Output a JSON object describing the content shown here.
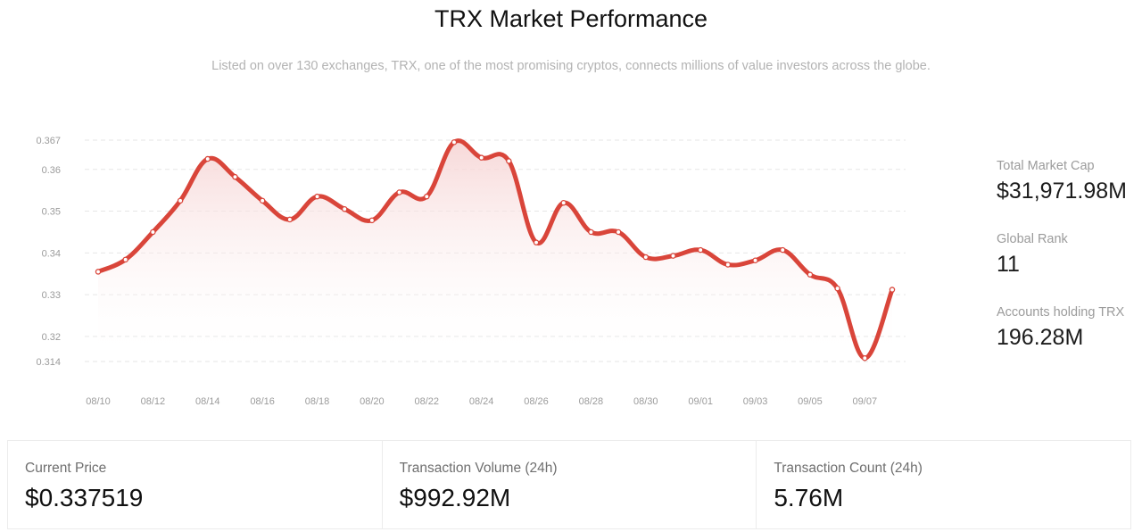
{
  "header": {
    "title": "TRX Market Performance",
    "subtitle": "Listed on over 130 exchanges, TRX, one of the most promising cryptos, connects millions of value investors across the globe."
  },
  "side_stats": [
    {
      "label": "Total Market Cap",
      "value": "$31,971.98M"
    },
    {
      "label": "Global Rank",
      "value": "11"
    },
    {
      "label": "Accounts holding TRX",
      "value": "196.28M"
    }
  ],
  "cards": [
    {
      "label": "Current Price",
      "value": "$0.337519"
    },
    {
      "label": "Transaction Volume (24h)",
      "value": "$992.92M"
    },
    {
      "label": "Transaction Count (24h)",
      "value": "5.76M"
    }
  ],
  "colors": {
    "line": "#d9453a",
    "fill": "#fbeaea",
    "grid": "#e6e6e6",
    "tick": "#9b9b9b"
  },
  "chart_data": {
    "type": "area",
    "title": "",
    "xlabel": "",
    "ylabel": "",
    "ylim": [
      0.314,
      0.367
    ],
    "grid": true,
    "yticks": [
      "0.367",
      "0.36",
      "0.35",
      "0.34",
      "0.33",
      "0.32",
      "0.314"
    ],
    "ytick_values": [
      0.367,
      0.36,
      0.35,
      0.34,
      0.33,
      0.32,
      0.314
    ],
    "xticks": [
      "08/10",
      "08/12",
      "08/14",
      "08/16",
      "08/18",
      "08/20",
      "08/22",
      "08/24",
      "08/26",
      "08/28",
      "08/30",
      "09/01",
      "09/03",
      "09/05",
      "09/07"
    ],
    "x": [
      "08/10",
      "08/11",
      "08/12",
      "08/13",
      "08/14",
      "08/15",
      "08/16",
      "08/17",
      "08/18",
      "08/19",
      "08/20",
      "08/21",
      "08/22",
      "08/23",
      "08/24",
      "08/25",
      "08/26",
      "08/27",
      "08/28",
      "08/29",
      "08/30",
      "08/31",
      "09/01",
      "09/02",
      "09/03",
      "09/04",
      "09/05",
      "09/06",
      "09/07",
      "09/08"
    ],
    "series": [
      {
        "values": [
          0.3355,
          0.3384,
          0.345,
          0.3525,
          0.3625,
          0.3582,
          0.3525,
          0.348,
          0.3535,
          0.3505,
          0.3478,
          0.3545,
          0.3535,
          0.3665,
          0.3628,
          0.362,
          0.3425,
          0.352,
          0.345,
          0.345,
          0.339,
          0.3393,
          0.3407,
          0.3372,
          0.3382,
          0.3407,
          0.3348,
          0.3315,
          0.3148,
          0.3312
        ]
      }
    ]
  }
}
